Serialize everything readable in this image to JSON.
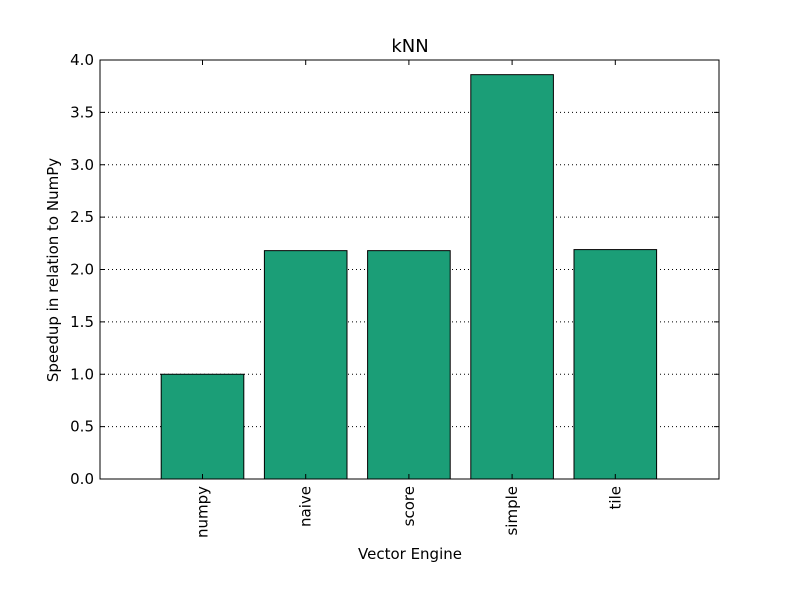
{
  "chart_data": {
    "type": "bar",
    "title": "kNN",
    "xlabel": "Vector Engine",
    "ylabel": "Speedup in relation to NumPy",
    "categories": [
      "numpy",
      "naive",
      "score",
      "simple",
      "tile"
    ],
    "values": [
      1.0,
      2.18,
      2.18,
      3.86,
      2.19
    ],
    "ylim": [
      0,
      4.0
    ],
    "yticks": [
      "0.0",
      "0.5",
      "1.0",
      "1.5",
      "2.0",
      "2.5",
      "3.0",
      "3.5",
      "4.0"
    ],
    "grid": "horizontal dotted",
    "bar_color": "#1b9e77"
  }
}
